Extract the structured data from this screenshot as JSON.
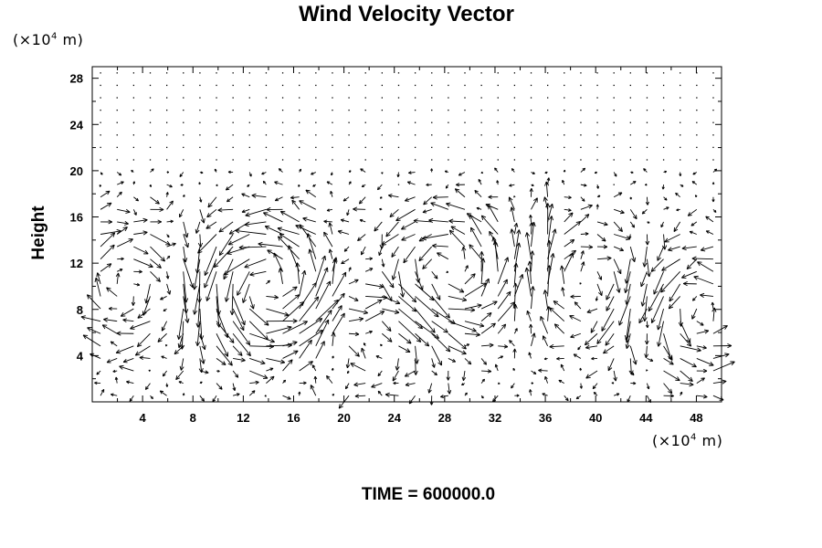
{
  "chart_data": {
    "type": "vector-field",
    "title": "Wind Velocity Vector",
    "ylabel": "Height",
    "xunit_prefix": "(×10",
    "xunit_exp": "4",
    "xunit_suffix": " m)",
    "yunit_prefix": "(×10",
    "yunit_exp": "4",
    "yunit_suffix": " m)",
    "footer": "TIME = 600000.0",
    "xlim": [
      0,
      50
    ],
    "ylim": [
      0,
      29
    ],
    "xticks": [
      4,
      8,
      12,
      16,
      20,
      24,
      28,
      32,
      36,
      40,
      44,
      48
    ],
    "yticks": [
      4,
      8,
      12,
      16,
      20,
      24,
      28
    ],
    "grid": false
  }
}
